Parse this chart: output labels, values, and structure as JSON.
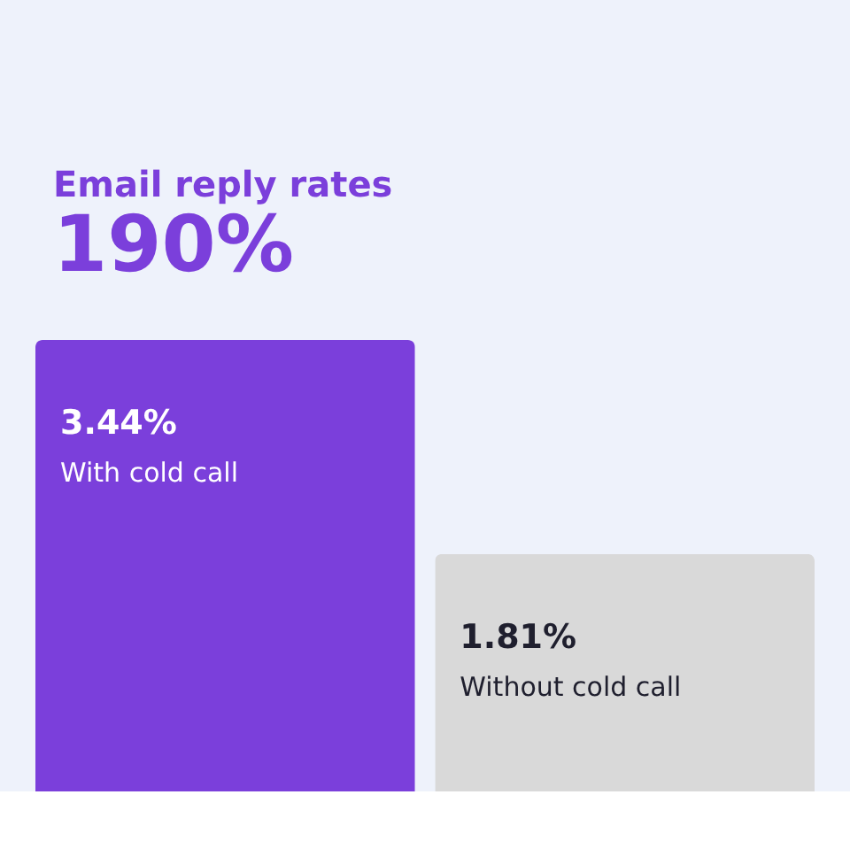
{
  "chart_data": {
    "type": "bar",
    "title": "Email reply rates",
    "subtitle": "190%",
    "categories": [
      "With cold call",
      "Without cold call"
    ],
    "values": [
      3.44,
      1.81
    ],
    "colors": [
      "#7b3fdb",
      "#d9d9d9"
    ],
    "data_labels": true,
    "value_labels": [
      "3.44%",
      "1.81%"
    ]
  }
}
